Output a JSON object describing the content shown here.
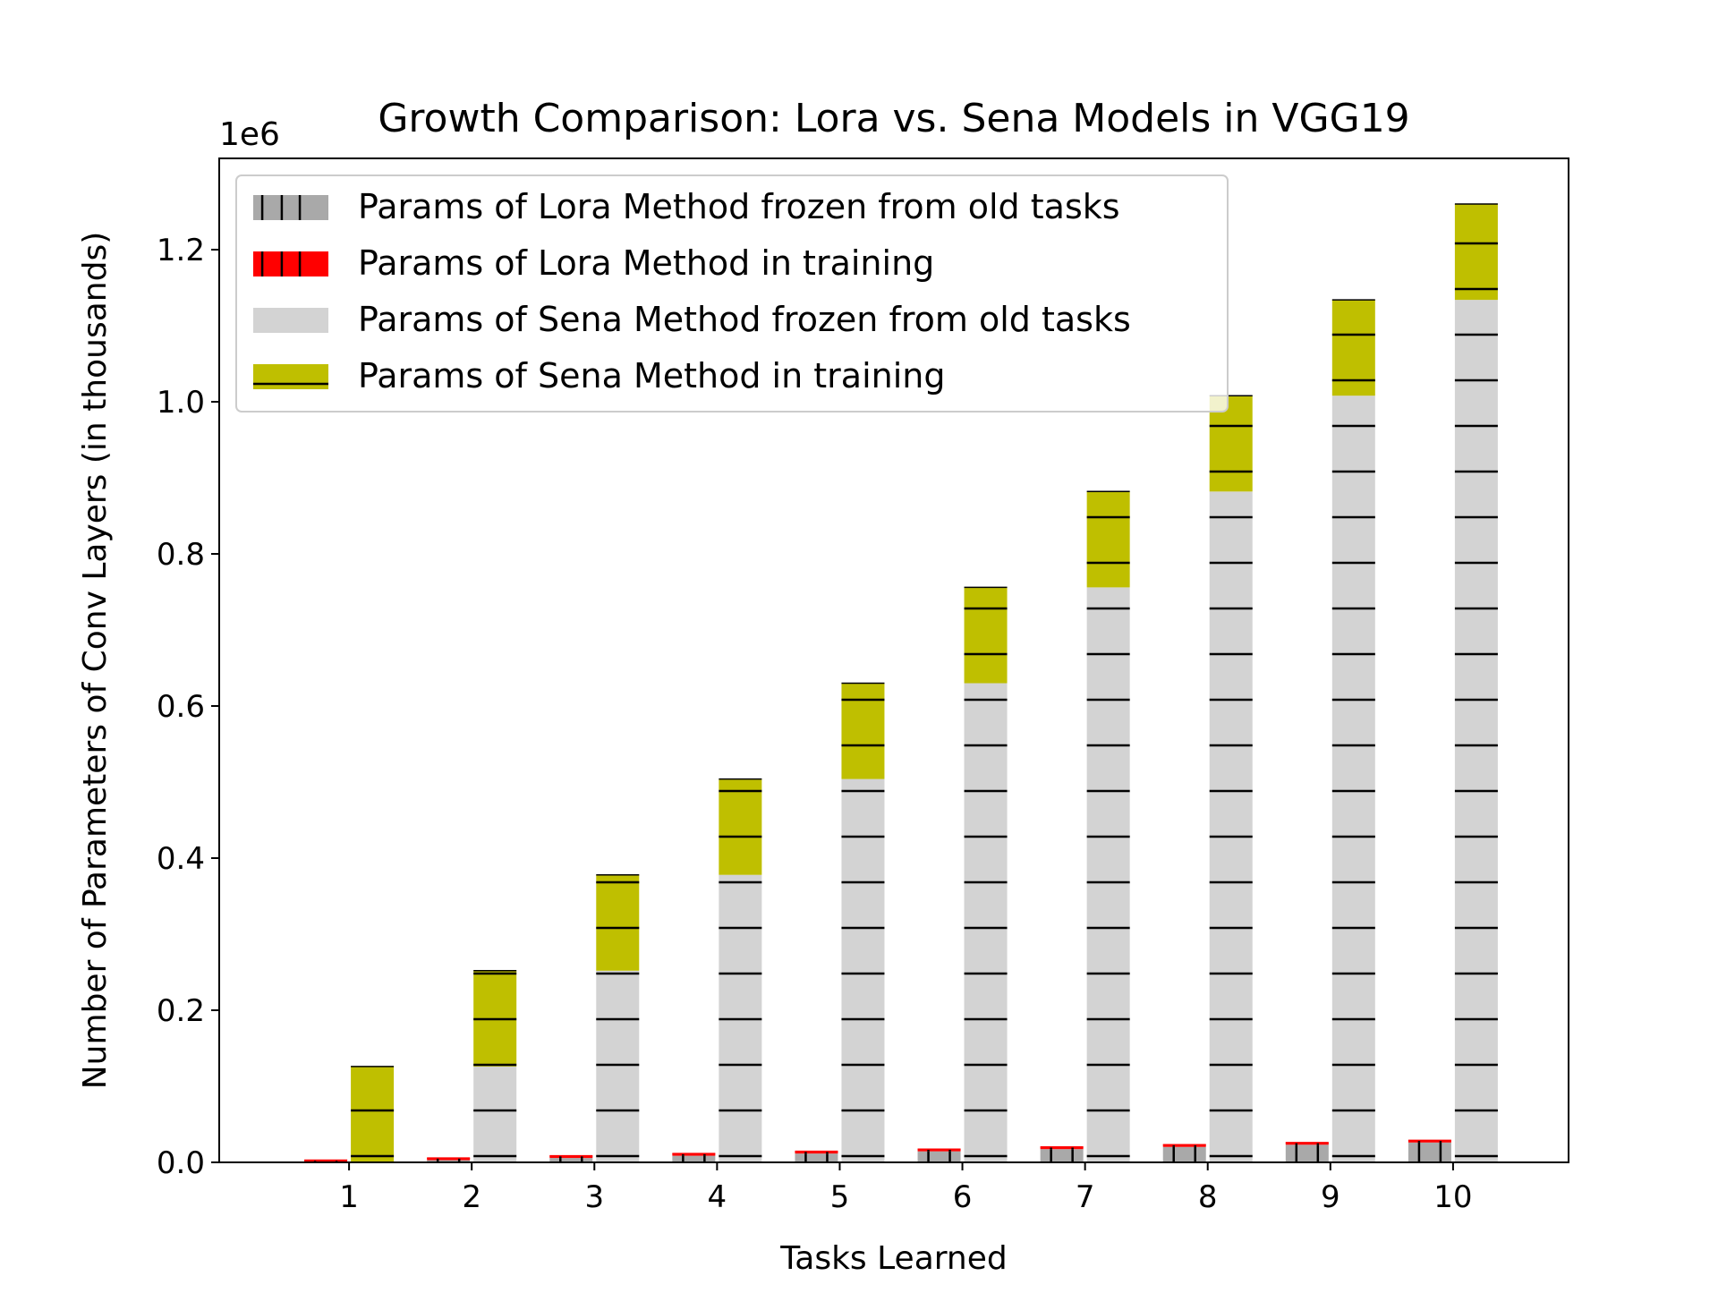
{
  "chart_data": {
    "type": "bar",
    "title": "Growth Comparison: Lora vs. Sena Models in VGG19",
    "xlabel": "Tasks Learned",
    "ylabel": "Number of Parameters of Conv Layers (in thousands)",
    "y_scale_label": "1e6",
    "ylim": [
      0,
      1.32
    ],
    "y_ticks": [
      0.0,
      0.2,
      0.4,
      0.6,
      0.8,
      1.0,
      1.2
    ],
    "y_tick_labels": [
      "0.0",
      "0.2",
      "0.4",
      "0.6",
      "0.8",
      "1.0",
      "1.2"
    ],
    "categories": [
      "1",
      "2",
      "3",
      "4",
      "5",
      "6",
      "7",
      "8",
      "9",
      "10"
    ],
    "legend_position": "upper-left",
    "grid": false,
    "series": [
      {
        "name": "Params of Lora Method frozen from old tasks",
        "group": "lora",
        "color": "#a9a9a9",
        "hatch": "vertical",
        "values": [
          0,
          0.0029,
          0.0058,
          0.0087,
          0.0116,
          0.0145,
          0.0174,
          0.0203,
          0.0232,
          0.0261
        ]
      },
      {
        "name": "Params of Lora Method in training",
        "group": "lora",
        "color": "#ff0000",
        "hatch": "vertical",
        "values": [
          0.0029,
          0.0029,
          0.0029,
          0.0029,
          0.0029,
          0.0029,
          0.0029,
          0.0029,
          0.0029,
          0.0029
        ]
      },
      {
        "name": "Params of Sena Method frozen from old tasks",
        "group": "sena",
        "color": "#d3d3d3",
        "hatch": "horizontal",
        "values": [
          0,
          0.126,
          0.252,
          0.378,
          0.504,
          0.63,
          0.756,
          0.882,
          1.008,
          1.134
        ]
      },
      {
        "name": "Params of Sena Method in training",
        "group": "sena",
        "color": "#bfbf00",
        "hatch": "horizontal",
        "values": [
          0.126,
          0.126,
          0.126,
          0.126,
          0.126,
          0.126,
          0.126,
          0.126,
          0.126,
          0.126
        ]
      }
    ]
  }
}
